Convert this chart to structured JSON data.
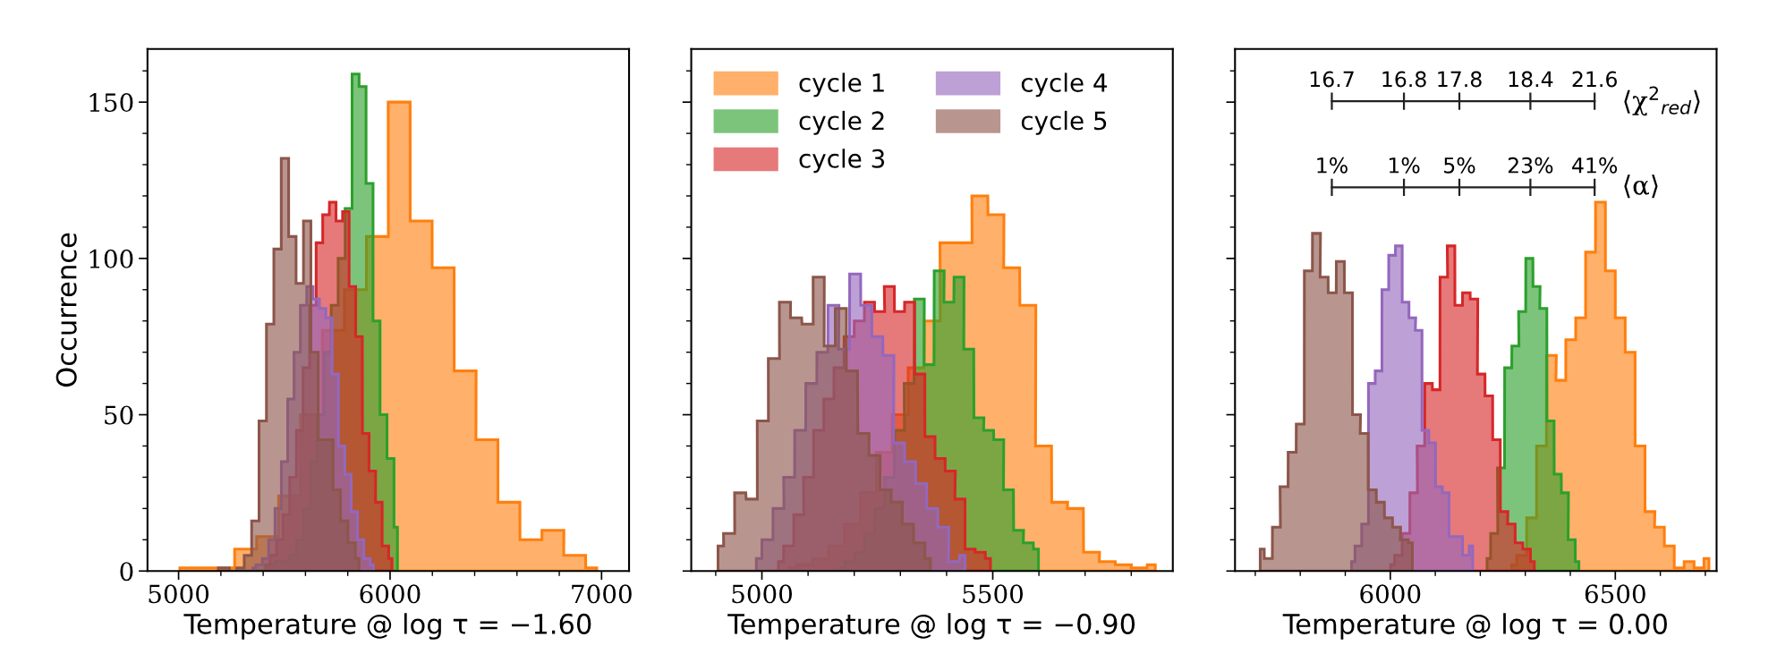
{
  "chart_data": [
    {
      "type": "area",
      "xlabel": "Temperature @ log τ = −1.60",
      "ylabel": "Occurrence",
      "xlim": [
        4853,
        7130
      ],
      "ylim": [
        0,
        167
      ],
      "xticks": [
        5000,
        6000,
        7000,
        {
          "value": 5200,
          "label": null
        },
        {
          "value": 5400,
          "label": null
        },
        {
          "value": 5600,
          "label": null
        },
        {
          "value": 5800,
          "label": null
        },
        {
          "value": 6200,
          "label": null
        },
        {
          "value": 6400,
          "label": null
        },
        {
          "value": 6600,
          "label": null
        },
        {
          "value": 6800,
          "label": null
        }
      ],
      "yticks": [
        0,
        50,
        100,
        150,
        {
          "value": 10,
          "label": null
        },
        {
          "value": 20,
          "label": null
        },
        {
          "value": 30,
          "label": null
        },
        {
          "value": 40,
          "label": null
        },
        {
          "value": 60,
          "label": null
        },
        {
          "value": 70,
          "label": null
        },
        {
          "value": 80,
          "label": null
        },
        {
          "value": 90,
          "label": null
        },
        {
          "value": 110,
          "label": null
        },
        {
          "value": 120,
          "label": null
        },
        {
          "value": 130,
          "label": null
        },
        {
          "value": 140,
          "label": null
        },
        {
          "value": 160,
          "label": null
        }
      ],
      "series": [
        {
          "color": "#ff7f0e",
          "x": [
            5006,
            5110,
            5213,
            5317,
            5421,
            5525,
            5628,
            5732,
            5836,
            5940,
            6043,
            6147,
            6251,
            6355,
            6458,
            6562,
            6666,
            6770,
            6873,
            6977
          ],
          "values": [
            1,
            1,
            1,
            7,
            11,
            24,
            50,
            77,
            90,
            107,
            150,
            112,
            97,
            64,
            42,
            22,
            10,
            13,
            5,
            1
          ]
        },
        {
          "color": "#2ca02c",
          "x": [
            5408,
            5441,
            5474,
            5507,
            5540,
            5573,
            5606,
            5639,
            5672,
            5705,
            5738,
            5771,
            5804,
            5837,
            5870,
            5903,
            5936,
            5969,
            6002,
            6035
          ],
          "values": [
            2,
            2,
            3,
            3,
            5,
            10,
            20,
            35,
            50,
            70,
            85,
            100,
            116,
            159,
            155,
            124,
            80,
            50,
            36,
            14
          ]
        },
        {
          "color": "#d62728",
          "x": [
            5417,
            5448,
            5479,
            5510,
            5541,
            5573,
            5604,
            5635,
            5666,
            5697,
            5729,
            5760,
            5791,
            5822,
            5853,
            5885,
            5916,
            5947,
            5978,
            6009
          ],
          "values": [
            2,
            5,
            10,
            18,
            30,
            45,
            65,
            85,
            105,
            114,
            118,
            112,
            115,
            91,
            75,
            44,
            32,
            22,
            8,
            4
          ]
        },
        {
          "color": "#9467bd",
          "x": [
            5351,
            5381,
            5411,
            5441,
            5471,
            5501,
            5531,
            5561,
            5591,
            5621,
            5651,
            5681,
            5711,
            5741,
            5771,
            5801,
            5831,
            5861,
            5891,
            5921
          ],
          "values": [
            1,
            2,
            4,
            10,
            20,
            35,
            55,
            70,
            85,
            91,
            87,
            84,
            81,
            63,
            40,
            31,
            19,
            10,
            4,
            2
          ]
        },
        {
          "color": "#8c564b",
          "x": [
            5188,
            5223,
            5258,
            5293,
            5328,
            5363,
            5398,
            5433,
            5468,
            5503,
            5538,
            5573,
            5608,
            5643,
            5678,
            5713,
            5748,
            5783,
            5818,
            5853
          ],
          "values": [
            1,
            1,
            0,
            1,
            5,
            16,
            48,
            79,
            103,
            132,
            107,
            92,
            112,
            70,
            42,
            42,
            26,
            16,
            9,
            4
          ]
        }
      ]
    },
    {
      "type": "area",
      "xlabel": "Temperature @ log τ = −0.90",
      "legend": "top left",
      "tick_labels": "x",
      "xlim": [
        4847,
        5890
      ],
      "ylim": [
        0,
        167
      ],
      "xticks": [
        5000,
        5500,
        {
          "value": 4900,
          "label": null
        },
        {
          "value": 5100,
          "label": null
        },
        {
          "value": 5200,
          "label": null
        },
        {
          "value": 5300,
          "label": null
        },
        {
          "value": 5400,
          "label": null
        },
        {
          "value": 5600,
          "label": null
        },
        {
          "value": 5700,
          "label": null
        },
        {
          "value": 5800,
          "label": null
        }
      ],
      "yticks": [
        0,
        50,
        100,
        150,
        {
          "value": 10,
          "label": null
        },
        {
          "value": 20,
          "label": null
        },
        {
          "value": 30,
          "label": null
        },
        {
          "value": 40,
          "label": null
        },
        {
          "value": 60,
          "label": null
        },
        {
          "value": 70,
          "label": null
        },
        {
          "value": 80,
          "label": null
        },
        {
          "value": 90,
          "label": null
        },
        {
          "value": 110,
          "label": null
        },
        {
          "value": 120,
          "label": null
        },
        {
          "value": 130,
          "label": null
        },
        {
          "value": 140,
          "label": null
        },
        {
          "value": 160,
          "label": null
        }
      ],
      "series": [
        {
          "name": "cycle 1",
          "color": "#ff7f0e",
          "x": [
            5058,
            5093,
            5127,
            5162,
            5196,
            5231,
            5265,
            5300,
            5334,
            5369,
            5403,
            5438,
            5472,
            5507,
            5541,
            5576,
            5610,
            5645,
            5679,
            5714,
            5748,
            5783,
            5817,
            5852
          ],
          "values": [
            1,
            2,
            4,
            8,
            15,
            25,
            38,
            50,
            65,
            80,
            105,
            105,
            120,
            114,
            97,
            85,
            40,
            22,
            20,
            6,
            3,
            2,
            1,
            2
          ]
        },
        {
          "name": "cycle 2",
          "color": "#2ca02c",
          "x": [
            5169,
            5190,
            5212,
            5233,
            5255,
            5276,
            5298,
            5319,
            5341,
            5362,
            5384,
            5405,
            5427,
            5448,
            5470,
            5491,
            5513,
            5534,
            5556,
            5577,
            5599
          ],
          "values": [
            1,
            3,
            6,
            12,
            20,
            30,
            45,
            60,
            87,
            66,
            96,
            86,
            94,
            71,
            49,
            45,
            42,
            26,
            13,
            9,
            7
          ]
        },
        {
          "name": "cycle 3",
          "color": "#d62728",
          "x": [
            5036,
            5058,
            5080,
            5101,
            5123,
            5145,
            5167,
            5189,
            5211,
            5233,
            5255,
            5276,
            5298,
            5320,
            5342,
            5364,
            5386,
            5408,
            5429,
            5451,
            5473,
            5495
          ],
          "values": [
            3,
            8,
            18,
            30,
            45,
            55,
            65,
            75,
            80,
            86,
            83,
            91,
            83,
            86,
            63,
            43,
            36,
            32,
            23,
            7,
            6,
            4
          ]
        },
        {
          "name": "cycle 4",
          "color": "#9467bd",
          "x": [
            4988,
            5012,
            5036,
            5059,
            5083,
            5107,
            5131,
            5155,
            5178,
            5202,
            5226,
            5250,
            5274,
            5297,
            5321,
            5345,
            5369,
            5393,
            5416,
            5440
          ],
          "values": [
            4,
            10,
            20,
            30,
            45,
            60,
            70,
            85,
            71,
            95,
            85,
            75,
            69,
            41,
            35,
            28,
            20,
            14,
            3,
            5
          ]
        },
        {
          "name": "cycle 5",
          "color": "#8c564b",
          "x": [
            4905,
            4929,
            4953,
            4978,
            5002,
            5026,
            5050,
            5074,
            5099,
            5123,
            5147,
            5171,
            5195,
            5220,
            5244,
            5268,
            5292,
            5316,
            5341,
            5365
          ],
          "values": [
            8,
            12,
            25,
            23,
            48,
            68,
            86,
            81,
            79,
            94,
            72,
            84,
            64,
            44,
            37,
            26,
            22,
            15,
            9,
            4
          ]
        }
      ]
    },
    {
      "type": "area",
      "xlabel": "Temperature @ log τ = 0.00",
      "tick_labels": "x",
      "xlim": [
        5655,
        6725
      ],
      "ylim": [
        0,
        167
      ],
      "xticks": [
        6000,
        6500,
        {
          "value": 5700,
          "label": null
        },
        {
          "value": 5800,
          "label": null
        },
        {
          "value": 5900,
          "label": null
        },
        {
          "value": 6100,
          "label": null
        },
        {
          "value": 6200,
          "label": null
        },
        {
          "value": 6300,
          "label": null
        },
        {
          "value": 6400,
          "label": null
        },
        {
          "value": 6600,
          "label": null
        },
        {
          "value": 6700,
          "label": null
        }
      ],
      "yticks": [
        0,
        50,
        100,
        150,
        {
          "value": 10,
          "label": null
        },
        {
          "value": 20,
          "label": null
        },
        {
          "value": 30,
          "label": null
        },
        {
          "value": 40,
          "label": null
        },
        {
          "value": 60,
          "label": null
        },
        {
          "value": 70,
          "label": null
        },
        {
          "value": 80,
          "label": null
        },
        {
          "value": 90,
          "label": null
        },
        {
          "value": 110,
          "label": null
        },
        {
          "value": 120,
          "label": null
        },
        {
          "value": 130,
          "label": null
        },
        {
          "value": 140,
          "label": null
        },
        {
          "value": 160,
          "label": null
        }
      ],
      "annotations": [
        "16.7",
        "16.8",
        "17.8",
        "18.4",
        "21.6",
        "⟨χ$^{2}$$_{red}$⟩",
        "1%",
        "1%",
        "5%",
        "23%",
        "41%",
        "⟨α⟩"
      ],
      "series": [
        {
          "color": "#ff7f0e",
          "x": [
            6270,
            6292,
            6314,
            6336,
            6358,
            6379,
            6401,
            6423,
            6445,
            6467,
            6489,
            6511,
            6533,
            6555,
            6577,
            6598,
            6620,
            6642,
            6664,
            6686,
            6708
          ],
          "values": [
            2,
            5,
            17,
            40,
            69,
            61,
            74,
            81,
            102,
            118,
            96,
            81,
            70,
            40,
            19,
            14,
            8,
            1,
            3,
            1,
            4
          ]
        },
        {
          "color": "#2ca02c",
          "x": [
            6215,
            6231,
            6246,
            6262,
            6278,
            6293,
            6309,
            6325,
            6340,
            6356,
            6372,
            6388,
            6403,
            6419
          ],
          "values": [
            4,
            12,
            33,
            65,
            72,
            83,
            100,
            91,
            84,
            48,
            31,
            25,
            10,
            3
          ]
        },
        {
          "color": "#d62728",
          "x": [
            6001,
            6018,
            6035,
            6052,
            6068,
            6085,
            6102,
            6119,
            6135,
            6152,
            6169,
            6186,
            6202,
            6219,
            6236,
            6253,
            6269,
            6286,
            6303,
            6320
          ],
          "values": [
            2,
            5,
            12,
            25,
            40,
            60,
            58,
            94,
            104,
            85,
            89,
            87,
            63,
            56,
            42,
            19,
            15,
            9,
            7,
            3
          ]
        },
        {
          "color": "#9467bd",
          "x": [
            5914,
            5929,
            5944,
            5959,
            5974,
            5989,
            6004,
            6019,
            6034,
            6049,
            6063,
            6078,
            6093,
            6108,
            6123,
            6138,
            6153,
            6168,
            6183
          ],
          "values": [
            3,
            8,
            15,
            60,
            64,
            90,
            101,
            104,
            86,
            81,
            77,
            45,
            41,
            27,
            25,
            11,
            11,
            5,
            8
          ]
        },
        {
          "color": "#8c564b",
          "x": [
            5711,
            5729,
            5747,
            5764,
            5782,
            5800,
            5818,
            5836,
            5853,
            5871,
            5889,
            5907,
            5925,
            5942,
            5960,
            5978,
            5996,
            6014,
            6031,
            6049
          ],
          "values": [
            7,
            4,
            14,
            27,
            38,
            47,
            96,
            108,
            94,
            89,
            99,
            89,
            50,
            44,
            26,
            22,
            17,
            14,
            10,
            9
          ]
        }
      ]
    }
  ]
}
